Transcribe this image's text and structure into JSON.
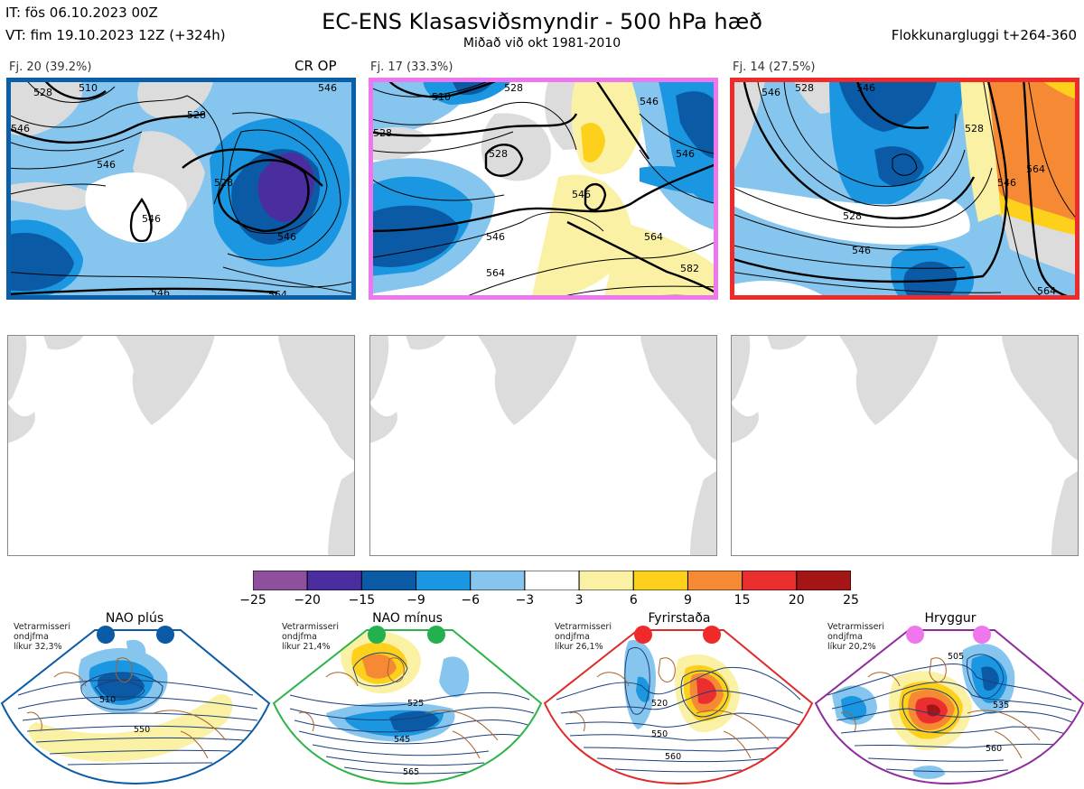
{
  "header": {
    "it_line": "IT: fös 06.10.2023 00Z",
    "vt_line": "VT: fim 19.10.2023 12Z  (+324h)",
    "title": "EC-ENS Klasasviðsmyndir - 500 hPa hæð",
    "subtitle": "Miðað við okt 1981-2010",
    "window": "Flokkunargluggi t+264-360"
  },
  "clusters": [
    {
      "label": "Fj. 20 (39.2%)",
      "color": "#0a5fa8",
      "contours": [
        "528",
        "528",
        "546",
        "546",
        "510",
        "546",
        "546",
        "528",
        "546",
        "546",
        "564"
      ]
    },
    {
      "label": "Fj. 17 (33.3%)",
      "color": "#ee77ee",
      "contours": [
        "510",
        "528",
        "528",
        "546",
        "546",
        "546",
        "564",
        "564",
        "582",
        "528",
        "546"
      ]
    },
    {
      "label": "Fj. 14 (27.5%)",
      "color": "#ee2a2a",
      "contours": [
        "546",
        "528",
        "546",
        "528",
        "546",
        "564",
        "546",
        "564",
        "528"
      ]
    }
  ],
  "crop_label": "CR OP",
  "colorbar": {
    "colors": [
      "#8e4f9d",
      "#4a2ea0",
      "#0b5aa6",
      "#1a97e0",
      "#86c6ee",
      "#ffffff",
      "#fbf1a4",
      "#fdd01c",
      "#f68a34",
      "#eb2f2f",
      "#a41515"
    ],
    "labels": [
      "−25",
      "−20",
      "−15",
      "−9",
      "−6",
      "−3",
      "3",
      "6",
      "9",
      "15",
      "20",
      "25"
    ]
  },
  "regimes": [
    {
      "title": "NAO plús",
      "marker_color": "#0b5aa6",
      "border": "#0b5aa6",
      "clim": [
        "Vetrarmisseri",
        "ondjfma",
        "líkur 32,3%"
      ],
      "contours": [
        "510",
        "550"
      ]
    },
    {
      "title": "NAO mínus",
      "marker_color": "#22b14c",
      "border": "#2db34a",
      "clim": [
        "Vetrarmisseri",
        "ondjfma",
        "líkur 21,4%"
      ],
      "contours": [
        "525",
        "545",
        "565"
      ]
    },
    {
      "title": "Fyrirstaða",
      "marker_color": "#ee2a2a",
      "border": "#e02a2a",
      "clim": [
        "Vetrarmisseri",
        "ondjfma",
        "líkur 26,1%"
      ],
      "contours": [
        "520",
        "550",
        "560"
      ]
    },
    {
      "title": "Hryggur",
      "marker_color": "#ee77ee",
      "border": "#8e2c9c",
      "clim": [
        "Vetrarmisseri",
        "ondjfma",
        "líkur 20,2%"
      ],
      "contours": [
        "505",
        "535",
        "560"
      ]
    }
  ]
}
